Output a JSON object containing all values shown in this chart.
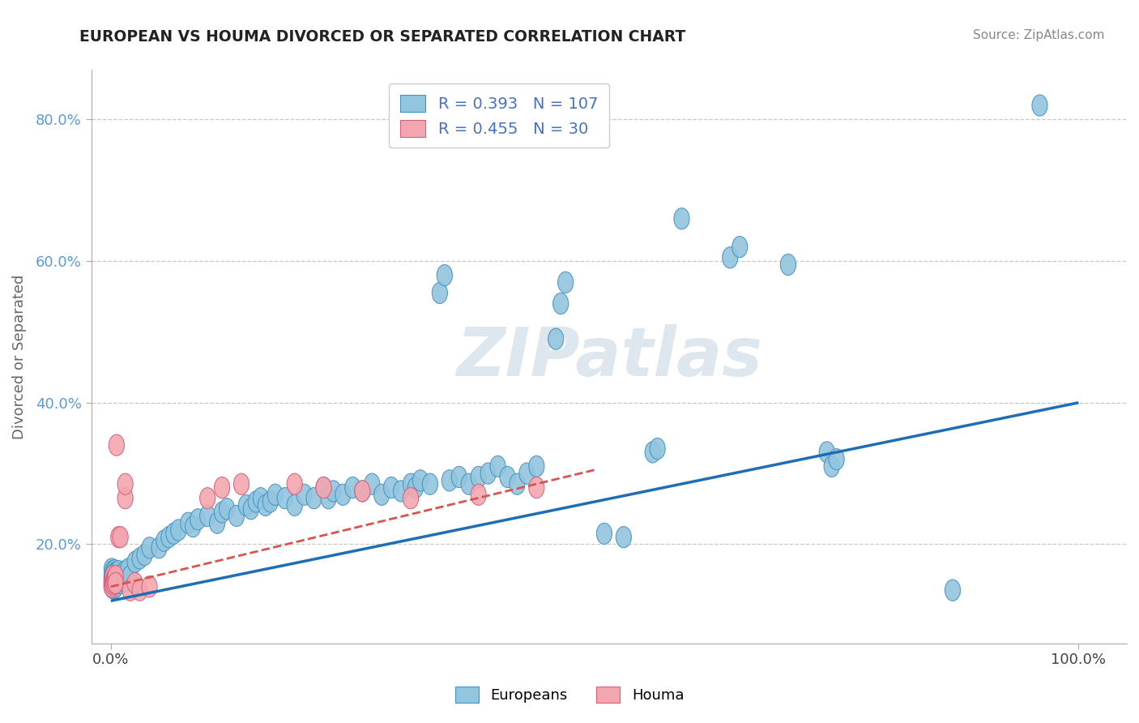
{
  "title": "EUROPEAN VS HOUMA DIVORCED OR SEPARATED CORRELATION CHART",
  "source_text": "Source: ZipAtlas.com",
  "ylabel": "Divorced or Separated",
  "xlim": [
    -0.02,
    1.05
  ],
  "ylim": [
    0.06,
    0.87
  ],
  "ytick_values": [
    0.2,
    0.4,
    0.6,
    0.8
  ],
  "ytick_labels": [
    "20.0%",
    "40.0%",
    "60.0%",
    "80.0%"
  ],
  "xtick_values": [
    0.0,
    1.0
  ],
  "xtick_labels": [
    "0.0%",
    "100.0%"
  ],
  "legend_r_european": "0.393",
  "legend_n_european": "107",
  "legend_r_houma": "0.455",
  "legend_n_houma": "30",
  "european_color": "#92c5de",
  "european_edge_color": "#4393c3",
  "houma_color": "#f4a6b0",
  "houma_edge_color": "#d6607a",
  "european_line_color": "#1f6eb5",
  "houma_line_color": "#d9534f",
  "background_color": "#ffffff",
  "watermark_color": "#d0dce8",
  "grid_color": "#c8c8c8",
  "axis_color": "#aaaaaa",
  "title_color": "#222222",
  "source_color": "#888888",
  "ylabel_color": "#666666",
  "tick_color": "#5b9bd5",
  "xtick_color": "#444444",
  "eu_line_x": [
    0.0,
    1.0
  ],
  "eu_line_y": [
    0.12,
    0.4
  ],
  "ho_line_x": [
    0.0,
    0.5
  ],
  "ho_line_y": [
    0.14,
    0.305
  ],
  "european_points": [
    [
      0.001,
      0.155
    ],
    [
      0.001,
      0.145
    ],
    [
      0.001,
      0.165
    ],
    [
      0.001,
      0.15
    ],
    [
      0.001,
      0.14
    ],
    [
      0.002,
      0.152
    ],
    [
      0.002,
      0.148
    ],
    [
      0.002,
      0.158
    ],
    [
      0.002,
      0.162
    ],
    [
      0.002,
      0.138
    ],
    [
      0.003,
      0.155
    ],
    [
      0.003,
      0.145
    ],
    [
      0.003,
      0.16
    ],
    [
      0.003,
      0.15
    ],
    [
      0.003,
      0.142
    ],
    [
      0.004,
      0.157
    ],
    [
      0.004,
      0.143
    ],
    [
      0.004,
      0.163
    ],
    [
      0.004,
      0.148
    ],
    [
      0.004,
      0.138
    ],
    [
      0.005,
      0.155
    ],
    [
      0.005,
      0.15
    ],
    [
      0.005,
      0.16
    ],
    [
      0.005,
      0.145
    ],
    [
      0.005,
      0.14
    ],
    [
      0.006,
      0.16
    ],
    [
      0.006,
      0.148
    ],
    [
      0.007,
      0.158
    ],
    [
      0.007,
      0.145
    ],
    [
      0.008,
      0.162
    ],
    [
      0.009,
      0.148
    ],
    [
      0.01,
      0.155
    ],
    [
      0.01,
      0.145
    ],
    [
      0.012,
      0.158
    ],
    [
      0.012,
      0.148
    ],
    [
      0.015,
      0.162
    ],
    [
      0.015,
      0.148
    ],
    [
      0.018,
      0.165
    ],
    [
      0.02,
      0.155
    ],
    [
      0.025,
      0.175
    ],
    [
      0.03,
      0.18
    ],
    [
      0.035,
      0.185
    ],
    [
      0.04,
      0.195
    ],
    [
      0.05,
      0.195
    ],
    [
      0.055,
      0.205
    ],
    [
      0.06,
      0.21
    ],
    [
      0.065,
      0.215
    ],
    [
      0.07,
      0.22
    ],
    [
      0.08,
      0.23
    ],
    [
      0.085,
      0.225
    ],
    [
      0.09,
      0.235
    ],
    [
      0.1,
      0.24
    ],
    [
      0.11,
      0.23
    ],
    [
      0.115,
      0.245
    ],
    [
      0.12,
      0.25
    ],
    [
      0.13,
      0.24
    ],
    [
      0.14,
      0.255
    ],
    [
      0.145,
      0.25
    ],
    [
      0.15,
      0.26
    ],
    [
      0.155,
      0.265
    ],
    [
      0.16,
      0.255
    ],
    [
      0.165,
      0.26
    ],
    [
      0.17,
      0.27
    ],
    [
      0.18,
      0.265
    ],
    [
      0.19,
      0.255
    ],
    [
      0.2,
      0.27
    ],
    [
      0.21,
      0.265
    ],
    [
      0.22,
      0.28
    ],
    [
      0.225,
      0.265
    ],
    [
      0.23,
      0.275
    ],
    [
      0.24,
      0.27
    ],
    [
      0.25,
      0.28
    ],
    [
      0.26,
      0.275
    ],
    [
      0.27,
      0.285
    ],
    [
      0.28,
      0.27
    ],
    [
      0.29,
      0.28
    ],
    [
      0.3,
      0.275
    ],
    [
      0.31,
      0.285
    ],
    [
      0.315,
      0.28
    ],
    [
      0.32,
      0.29
    ],
    [
      0.33,
      0.285
    ],
    [
      0.34,
      0.555
    ],
    [
      0.345,
      0.58
    ],
    [
      0.35,
      0.29
    ],
    [
      0.36,
      0.295
    ],
    [
      0.37,
      0.285
    ],
    [
      0.38,
      0.295
    ],
    [
      0.39,
      0.3
    ],
    [
      0.4,
      0.31
    ],
    [
      0.41,
      0.295
    ],
    [
      0.42,
      0.285
    ],
    [
      0.43,
      0.3
    ],
    [
      0.44,
      0.31
    ],
    [
      0.46,
      0.49
    ],
    [
      0.465,
      0.54
    ],
    [
      0.47,
      0.57
    ],
    [
      0.51,
      0.215
    ],
    [
      0.53,
      0.21
    ],
    [
      0.56,
      0.33
    ],
    [
      0.565,
      0.335
    ],
    [
      0.59,
      0.66
    ],
    [
      0.64,
      0.605
    ],
    [
      0.65,
      0.62
    ],
    [
      0.7,
      0.595
    ],
    [
      0.74,
      0.33
    ],
    [
      0.745,
      0.31
    ],
    [
      0.75,
      0.32
    ],
    [
      0.87,
      0.135
    ],
    [
      0.96,
      0.82
    ]
  ],
  "houma_points": [
    [
      0.001,
      0.145
    ],
    [
      0.001,
      0.15
    ],
    [
      0.001,
      0.14
    ],
    [
      0.002,
      0.148
    ],
    [
      0.002,
      0.155
    ],
    [
      0.002,
      0.143
    ],
    [
      0.003,
      0.15
    ],
    [
      0.003,
      0.145
    ],
    [
      0.004,
      0.152
    ],
    [
      0.004,
      0.148
    ],
    [
      0.005,
      0.155
    ],
    [
      0.005,
      0.145
    ],
    [
      0.006,
      0.34
    ],
    [
      0.008,
      0.21
    ],
    [
      0.01,
      0.21
    ],
    [
      0.015,
      0.265
    ],
    [
      0.015,
      0.285
    ],
    [
      0.02,
      0.135
    ],
    [
      0.025,
      0.145
    ],
    [
      0.03,
      0.135
    ],
    [
      0.04,
      0.14
    ],
    [
      0.1,
      0.265
    ],
    [
      0.115,
      0.28
    ],
    [
      0.135,
      0.285
    ],
    [
      0.19,
      0.285
    ],
    [
      0.22,
      0.28
    ],
    [
      0.26,
      0.275
    ],
    [
      0.31,
      0.265
    ],
    [
      0.38,
      0.27
    ],
    [
      0.44,
      0.28
    ]
  ]
}
